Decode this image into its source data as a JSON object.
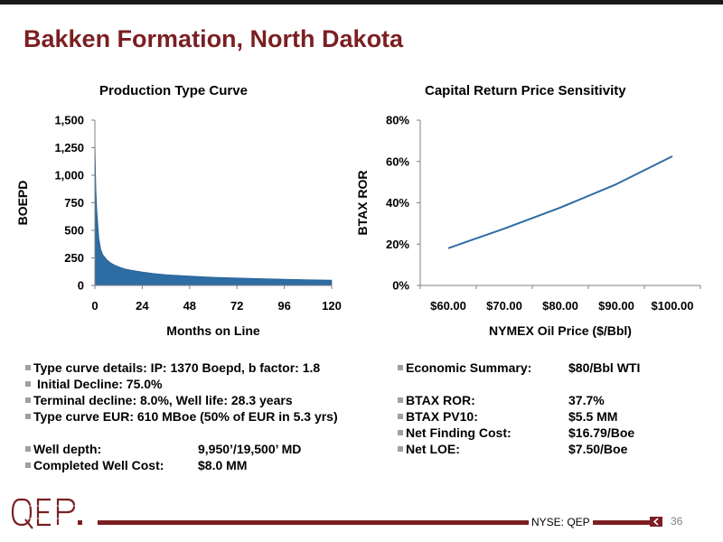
{
  "slide": {
    "title": "Bakken Formation, North Dakota",
    "page_number": "36",
    "ticker": "NYSE: QEP",
    "logo_text": "QEP",
    "logo_icon": "qep-logo",
    "accent_color": "#7b1f22"
  },
  "chart_data": [
    {
      "type": "area",
      "title": "Production Type Curve",
      "xlabel": "Months on Line",
      "ylabel": "BOEPD",
      "xlim": [
        0,
        120
      ],
      "ylim": [
        0,
        1500
      ],
      "x_ticks": [
        "0",
        "24",
        "48",
        "72",
        "96",
        "120"
      ],
      "y_ticks": [
        "0",
        "250",
        "500",
        "750",
        "1,000",
        "1,250",
        "1,500"
      ],
      "color": "#2e6ca4",
      "grid": false,
      "x": [
        0,
        0.5,
        1,
        2,
        3,
        4,
        6,
        8,
        10,
        12,
        15,
        18,
        24,
        30,
        36,
        48,
        60,
        72,
        84,
        96,
        108,
        120
      ],
      "y": [
        1370,
        880,
        680,
        430,
        330,
        280,
        235,
        205,
        185,
        170,
        152,
        140,
        122,
        108,
        98,
        85,
        75,
        68,
        62,
        57,
        52,
        48
      ]
    },
    {
      "type": "line",
      "title": "Capital Return Price Sensitivity",
      "xlabel": "NYMEX Oil Price ($/Bbl)",
      "ylabel": "BTAX ROR",
      "categories": [
        "$60.00",
        "$70.00",
        "$80.00",
        "$90.00",
        "$100.00"
      ],
      "y_ticks": [
        "0%",
        "20%",
        "40%",
        "60%",
        "80%"
      ],
      "ylim": [
        0,
        80
      ],
      "color": "#2e6ca4",
      "grid": false,
      "x": [
        60,
        70,
        80,
        90,
        100,
        105
      ],
      "y": [
        18,
        27.5,
        37.7,
        49,
        62.5,
        62.5
      ]
    }
  ],
  "summary": {
    "left": [
      {
        "key": "Type curve details: IP:  1370 Boepd, b factor:  1.8",
        "value": ""
      },
      {
        "key": " Initial Decline:  75.0%",
        "value": ""
      },
      {
        "key": "Terminal decline:  8.0%, Well life:  28.3 years",
        "value": ""
      },
      {
        "key": "Type curve EUR:  610 MBoe (50% of EUR in 5.3 yrs)",
        "value": ""
      },
      {
        "key": "Well depth:",
        "value": "9,950’/19,500’ MD"
      },
      {
        "key": "Completed Well Cost:",
        "value": "$8.0 MM"
      }
    ],
    "right": [
      {
        "key": "Economic Summary:",
        "value": "$80/Bbl WTI"
      },
      {
        "key": "BTAX ROR:",
        "value": "37.7%"
      },
      {
        "key": "BTAX PV10:",
        "value": "$5.5 MM"
      },
      {
        "key": "Net Finding Cost:",
        "value": "$16.79/Boe"
      },
      {
        "key": "Net LOE:",
        "value": "$7.50/Boe"
      }
    ]
  }
}
